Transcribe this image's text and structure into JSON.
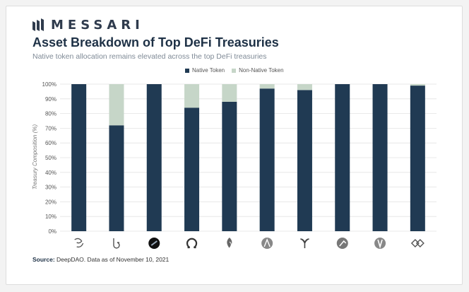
{
  "header": {
    "logo_text": "MESSARI",
    "title": "Asset Breakdown of Top DeFi Treasuries",
    "subtitle": "Native token allocation remains elevated across the top DeFi treasuries"
  },
  "footer": {
    "source_label": "Source:",
    "source_text": "DeepDAO. Data as of November 10, 2021"
  },
  "colors": {
    "native": "#203a53",
    "non_native": "#c6d6c8",
    "grid": "#e2e2e2",
    "axis_text": "#555555"
  },
  "chart_data": {
    "type": "bar",
    "stacked": true,
    "ylabel": "Treasury Composition (%)",
    "ylim": [
      0,
      100
    ],
    "yticks": [
      "0%",
      "10%",
      "20%",
      "30%",
      "40%",
      "50%",
      "60%",
      "70%",
      "80%",
      "90%",
      "100%"
    ],
    "grid": true,
    "legend_position": "top",
    "categories_icons": [
      "uniswap-icon",
      "badger-icon",
      "sushi-icon",
      "olympus-icon",
      "compound-icon",
      "aave-icon",
      "curve-icon",
      "balancer-icon",
      "maker-icon",
      "yearn-icon"
    ],
    "series": [
      {
        "name": "Native Token",
        "values": [
          100,
          72,
          100,
          84,
          88,
          97,
          96,
          100,
          100,
          99
        ]
      },
      {
        "name": "Non-Native Token",
        "values": [
          0,
          28,
          0,
          16,
          12,
          3,
          4,
          0,
          0,
          1
        ]
      }
    ]
  }
}
